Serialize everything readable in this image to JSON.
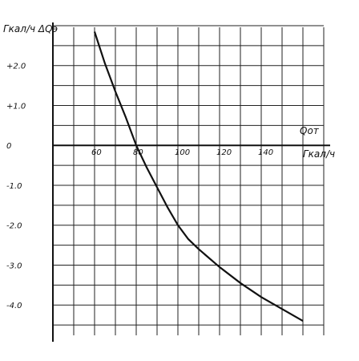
{
  "chart_data": {
    "type": "line",
    "ylabel": "Гкал/ч ΔQэ",
    "xlabel_symbol": "Qот",
    "xlabel_unit": "Гкал/ч",
    "xlim": [
      40,
      170
    ],
    "ylim": [
      -4.8,
      3.0
    ],
    "x_ticks": [
      {
        "value": 60,
        "label": "60"
      },
      {
        "value": 80,
        "label": "80"
      },
      {
        "value": 100,
        "label": "100"
      },
      {
        "value": 120,
        "label": "120"
      },
      {
        "value": 140,
        "label": "140"
      }
    ],
    "y_ticks": [
      {
        "value": 2.0,
        "label": "+2.0"
      },
      {
        "value": 1.0,
        "label": "+1.0"
      },
      {
        "value": 0,
        "label": "0"
      },
      {
        "value": -1.0,
        "label": "-1.0"
      },
      {
        "value": -2.0,
        "label": "-2.0"
      },
      {
        "value": -3.0,
        "label": "-3.0"
      },
      {
        "value": -4.0,
        "label": "-4.0"
      }
    ],
    "grid": true,
    "series": [
      {
        "x": [
          60,
          65,
          70,
          75,
          80,
          85,
          90,
          95,
          100,
          105,
          110,
          120,
          130,
          140,
          150,
          160
        ],
        "y": [
          2.85,
          2.05,
          1.35,
          0.7,
          0.0,
          -0.55,
          -1.05,
          -1.55,
          -2.0,
          -2.35,
          -2.6,
          -3.05,
          -3.45,
          -3.8,
          -4.1,
          -4.4
        ]
      }
    ]
  }
}
